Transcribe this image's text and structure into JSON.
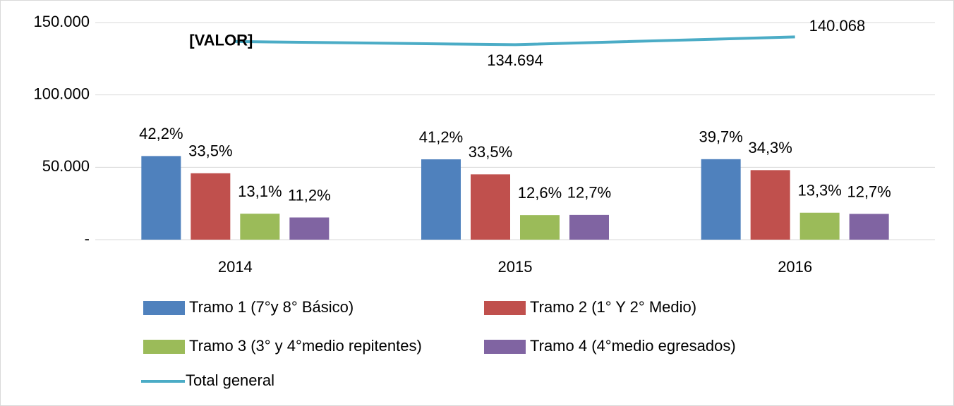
{
  "chart_data": {
    "type": "bar-line",
    "categories": [
      "2014",
      "2015",
      "2016"
    ],
    "ylim": [
      0,
      150000
    ],
    "yticks": [
      {
        "value": 0,
        "label": "-"
      },
      {
        "value": 50000,
        "label": "50.000"
      },
      {
        "value": 100000,
        "label": "100.000"
      },
      {
        "value": 150000,
        "label": "150.000"
      }
    ],
    "grid": true,
    "legend": "bottom",
    "series": [
      {
        "name": "Tramo 1 (7°y 8° Básico)",
        "type": "bar",
        "color": "#4f81bd",
        "values": [
          57770,
          55494,
          55607
        ],
        "data_labels": [
          "42,2%",
          "41,2%",
          "39,7%"
        ]
      },
      {
        "name": "Tramo 2 (1° Y 2° Medio)",
        "type": "bar",
        "color": "#c0504d",
        "values": [
          45860,
          45122,
          48043
        ],
        "data_labels": [
          "33,5%",
          "33,5%",
          "34,3%"
        ]
      },
      {
        "name": "Tramo 3 (3° y 4°medio repitentes)",
        "type": "bar",
        "color": "#9bbb59",
        "values": [
          17930,
          16971,
          18629
        ],
        "data_labels": [
          "13,1%",
          "12,6%",
          "13,3%"
        ]
      },
      {
        "name": "Tramo 4 (4°medio egresados)",
        "type": "bar",
        "color": "#8064a2",
        "values": [
          15330,
          17106,
          17789
        ],
        "data_labels": [
          "11,2%",
          "12,7%",
          "12,7%"
        ]
      },
      {
        "name": "Total general",
        "type": "line",
        "color": "#4bacc6",
        "values": [
          136900,
          134694,
          140068
        ],
        "value_labels": [
          "[VALOR]",
          "134.694",
          "140.068"
        ]
      }
    ]
  }
}
